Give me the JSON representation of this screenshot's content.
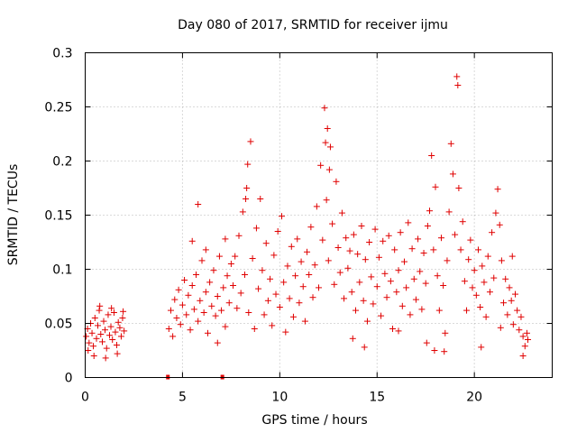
{
  "chart_data": {
    "type": "scatter",
    "title": "Day 080 of 2017, SRMTID for receiver ijmu",
    "xlabel": "GPS time / hours",
    "ylabel": "SRMTID / TECUs",
    "xlim": [
      0,
      24
    ],
    "ylim": [
      0,
      0.3
    ],
    "xticks": [
      0,
      5,
      10,
      15,
      20
    ],
    "yticks": [
      0,
      0.05,
      0.1,
      0.15,
      0.2,
      0.25,
      0.3
    ],
    "xtick_labels": [
      "0",
      "5",
      "10",
      "15",
      "20"
    ],
    "ytick_labels": [
      "0",
      "0.05",
      "0.1",
      "0.15",
      "0.2",
      "0.25",
      "0.3"
    ],
    "grid": true,
    "marker": "+",
    "color": "#e00000",
    "series": [
      {
        "name": "SRMTID",
        "points": [
          [
            0.05,
            0.038
          ],
          [
            0.12,
            0.045
          ],
          [
            0.2,
            0.032
          ],
          [
            0.28,
            0.05
          ],
          [
            0.35,
            0.041
          ],
          [
            0.42,
            0.029
          ],
          [
            0.5,
            0.055
          ],
          [
            0.58,
            0.036
          ],
          [
            0.65,
            0.048
          ],
          [
            0.72,
            0.062
          ],
          [
            0.8,
            0.04
          ],
          [
            0.88,
            0.033
          ],
          [
            0.95,
            0.052
          ],
          [
            1.02,
            0.044
          ],
          [
            1.1,
            0.027
          ],
          [
            1.18,
            0.058
          ],
          [
            1.25,
            0.039
          ],
          [
            1.32,
            0.047
          ],
          [
            1.4,
            0.035
          ],
          [
            1.48,
            0.06
          ],
          [
            1.55,
            0.042
          ],
          [
            1.62,
            0.03
          ],
          [
            1.7,
            0.051
          ],
          [
            1.78,
            0.046
          ],
          [
            1.85,
            0.038
          ],
          [
            1.92,
            0.055
          ],
          [
            2.0,
            0.043
          ],
          [
            0.15,
            0.025
          ],
          [
            0.45,
            0.02
          ],
          [
            0.75,
            0.066
          ],
          [
            1.05,
            0.018
          ],
          [
            1.35,
            0.064
          ],
          [
            1.65,
            0.022
          ],
          [
            1.95,
            0.061
          ],
          [
            4.3,
            0.045
          ],
          [
            4.4,
            0.062
          ],
          [
            4.5,
            0.038
          ],
          [
            4.6,
            0.072
          ],
          [
            4.7,
            0.055
          ],
          [
            4.8,
            0.081
          ],
          [
            4.9,
            0.049
          ],
          [
            5.0,
            0.067
          ],
          [
            5.1,
            0.09
          ],
          [
            5.2,
            0.058
          ],
          [
            5.3,
            0.076
          ],
          [
            5.4,
            0.044
          ],
          [
            5.5,
            0.085
          ],
          [
            5.6,
            0.063
          ],
          [
            5.7,
            0.095
          ],
          [
            5.8,
            0.052
          ],
          [
            5.9,
            0.071
          ],
          [
            6.0,
            0.108
          ],
          [
            6.1,
            0.06
          ],
          [
            6.2,
            0.079
          ],
          [
            6.3,
            0.041
          ],
          [
            6.4,
            0.088
          ],
          [
            6.5,
            0.066
          ],
          [
            6.6,
            0.099
          ],
          [
            6.7,
            0.057
          ],
          [
            6.8,
            0.075
          ],
          [
            6.9,
            0.112
          ],
          [
            7.0,
            0.062
          ],
          [
            7.1,
            0.083
          ],
          [
            7.2,
            0.047
          ],
          [
            7.3,
            0.094
          ],
          [
            7.4,
            0.069
          ],
          [
            7.5,
            0.105
          ],
          [
            5.8,
            0.16
          ],
          [
            5.5,
            0.126
          ],
          [
            6.2,
            0.118
          ],
          [
            6.8,
            0.032
          ],
          [
            7.2,
            0.128
          ],
          [
            7.6,
            0.085
          ],
          [
            7.7,
            0.112
          ],
          [
            7.8,
            0.064
          ],
          [
            7.9,
            0.131
          ],
          [
            8.0,
            0.078
          ],
          [
            8.1,
            0.153
          ],
          [
            8.2,
            0.095
          ],
          [
            8.3,
            0.175
          ],
          [
            8.4,
            0.06
          ],
          [
            8.5,
            0.218
          ],
          [
            8.6,
            0.11
          ],
          [
            8.7,
            0.045
          ],
          [
            8.8,
            0.138
          ],
          [
            8.9,
            0.082
          ],
          [
            9.0,
            0.165
          ],
          [
            9.1,
            0.099
          ],
          [
            9.2,
            0.058
          ],
          [
            9.3,
            0.124
          ],
          [
            9.4,
            0.071
          ],
          [
            9.5,
            0.091
          ],
          [
            9.6,
            0.048
          ],
          [
            9.7,
            0.113
          ],
          [
            9.8,
            0.077
          ],
          [
            9.9,
            0.135
          ],
          [
            10.0,
            0.065
          ],
          [
            10.1,
            0.149
          ],
          [
            10.2,
            0.088
          ],
          [
            10.3,
            0.042
          ],
          [
            10.4,
            0.103
          ],
          [
            10.5,
            0.073
          ],
          [
            10.6,
            0.121
          ],
          [
            10.7,
            0.056
          ],
          [
            10.8,
            0.094
          ],
          [
            10.9,
            0.128
          ],
          [
            11.0,
            0.069
          ],
          [
            11.1,
            0.107
          ],
          [
            11.2,
            0.084
          ],
          [
            11.3,
            0.052
          ],
          [
            11.4,
            0.116
          ],
          [
            11.5,
            0.095
          ],
          [
            11.6,
            0.139
          ],
          [
            11.7,
            0.074
          ],
          [
            11.8,
            0.104
          ],
          [
            11.9,
            0.158
          ],
          [
            12.0,
            0.083
          ],
          [
            12.1,
            0.196
          ],
          [
            12.2,
            0.127
          ],
          [
            12.3,
            0.249
          ],
          [
            12.4,
            0.164
          ],
          [
            12.5,
            0.108
          ],
          [
            12.6,
            0.213
          ],
          [
            12.7,
            0.142
          ],
          [
            12.8,
            0.086
          ],
          [
            12.9,
            0.181
          ],
          [
            13.0,
            0.12
          ],
          [
            13.1,
            0.097
          ],
          [
            13.2,
            0.152
          ],
          [
            13.3,
            0.073
          ],
          [
            13.4,
            0.129
          ],
          [
            13.5,
            0.101
          ],
          [
            8.35,
            0.197
          ],
          [
            8.25,
            0.165
          ],
          [
            12.45,
            0.23
          ],
          [
            12.35,
            0.217
          ],
          [
            12.55,
            0.192
          ],
          [
            13.6,
            0.117
          ],
          [
            13.7,
            0.079
          ],
          [
            13.8,
            0.132
          ],
          [
            13.9,
            0.062
          ],
          [
            14.0,
            0.114
          ],
          [
            14.1,
            0.088
          ],
          [
            14.2,
            0.14
          ],
          [
            14.3,
            0.071
          ],
          [
            14.4,
            0.109
          ],
          [
            14.5,
            0.052
          ],
          [
            14.6,
            0.125
          ],
          [
            14.7,
            0.093
          ],
          [
            14.8,
            0.068
          ],
          [
            14.9,
            0.137
          ],
          [
            15.0,
            0.084
          ],
          [
            15.1,
            0.111
          ],
          [
            15.2,
            0.057
          ],
          [
            15.3,
            0.126
          ],
          [
            15.4,
            0.096
          ],
          [
            15.5,
            0.074
          ],
          [
            15.6,
            0.131
          ],
          [
            15.7,
            0.089
          ],
          [
            15.8,
            0.045
          ],
          [
            15.9,
            0.118
          ],
          [
            16.0,
            0.079
          ],
          [
            16.1,
            0.099
          ],
          [
            16.2,
            0.134
          ],
          [
            16.3,
            0.066
          ],
          [
            16.4,
            0.107
          ],
          [
            16.5,
            0.083
          ],
          [
            16.6,
            0.143
          ],
          [
            16.7,
            0.058
          ],
          [
            16.8,
            0.119
          ],
          [
            16.9,
            0.091
          ],
          [
            17.0,
            0.072
          ],
          [
            17.1,
            0.128
          ],
          [
            17.2,
            0.098
          ],
          [
            17.3,
            0.063
          ],
          [
            17.4,
            0.115
          ],
          [
            17.5,
            0.087
          ],
          [
            17.6,
            0.14
          ],
          [
            17.7,
            0.154
          ],
          [
            17.8,
            0.205
          ],
          [
            17.9,
            0.118
          ],
          [
            18.0,
            0.176
          ],
          [
            18.1,
            0.094
          ],
          [
            18.2,
            0.062
          ],
          [
            18.3,
            0.129
          ],
          [
            18.4,
            0.085
          ],
          [
            18.5,
            0.041
          ],
          [
            18.6,
            0.108
          ],
          [
            18.7,
            0.153
          ],
          [
            18.8,
            0.216
          ],
          [
            18.9,
            0.188
          ],
          [
            19.0,
            0.132
          ],
          [
            19.1,
            0.278
          ],
          [
            19.15,
            0.27
          ],
          [
            19.2,
            0.175
          ],
          [
            19.3,
            0.118
          ],
          [
            19.4,
            0.144
          ],
          [
            19.5,
            0.089
          ],
          [
            19.6,
            0.062
          ],
          [
            19.7,
            0.109
          ],
          [
            19.8,
            0.127
          ],
          [
            19.9,
            0.083
          ],
          [
            20.0,
            0.099
          ],
          [
            17.55,
            0.032
          ],
          [
            17.95,
            0.025
          ],
          [
            18.45,
            0.024
          ],
          [
            16.1,
            0.043
          ],
          [
            13.75,
            0.036
          ],
          [
            14.35,
            0.028
          ],
          [
            20.1,
            0.076
          ],
          [
            20.2,
            0.118
          ],
          [
            20.3,
            0.065
          ],
          [
            20.4,
            0.103
          ],
          [
            20.5,
            0.088
          ],
          [
            20.6,
            0.056
          ],
          [
            20.7,
            0.112
          ],
          [
            20.8,
            0.079
          ],
          [
            20.9,
            0.134
          ],
          [
            21.0,
            0.092
          ],
          [
            21.1,
            0.152
          ],
          [
            21.2,
            0.174
          ],
          [
            21.3,
            0.141
          ],
          [
            21.4,
            0.108
          ],
          [
            21.5,
            0.069
          ],
          [
            21.6,
            0.091
          ],
          [
            21.7,
            0.058
          ],
          [
            21.8,
            0.083
          ],
          [
            21.9,
            0.071
          ],
          [
            22.0,
            0.049
          ],
          [
            22.1,
            0.077
          ],
          [
            22.2,
            0.062
          ],
          [
            22.3,
            0.044
          ],
          [
            22.4,
            0.056
          ],
          [
            22.5,
            0.038
          ],
          [
            22.6,
            0.029
          ],
          [
            22.7,
            0.041
          ],
          [
            22.75,
            0.035
          ],
          [
            22.5,
            0.02
          ],
          [
            21.95,
            0.112
          ],
          [
            20.35,
            0.028
          ],
          [
            21.35,
            0.046
          ]
        ]
      }
    ],
    "zero_markers": [
      4.25,
      7.05
    ]
  }
}
